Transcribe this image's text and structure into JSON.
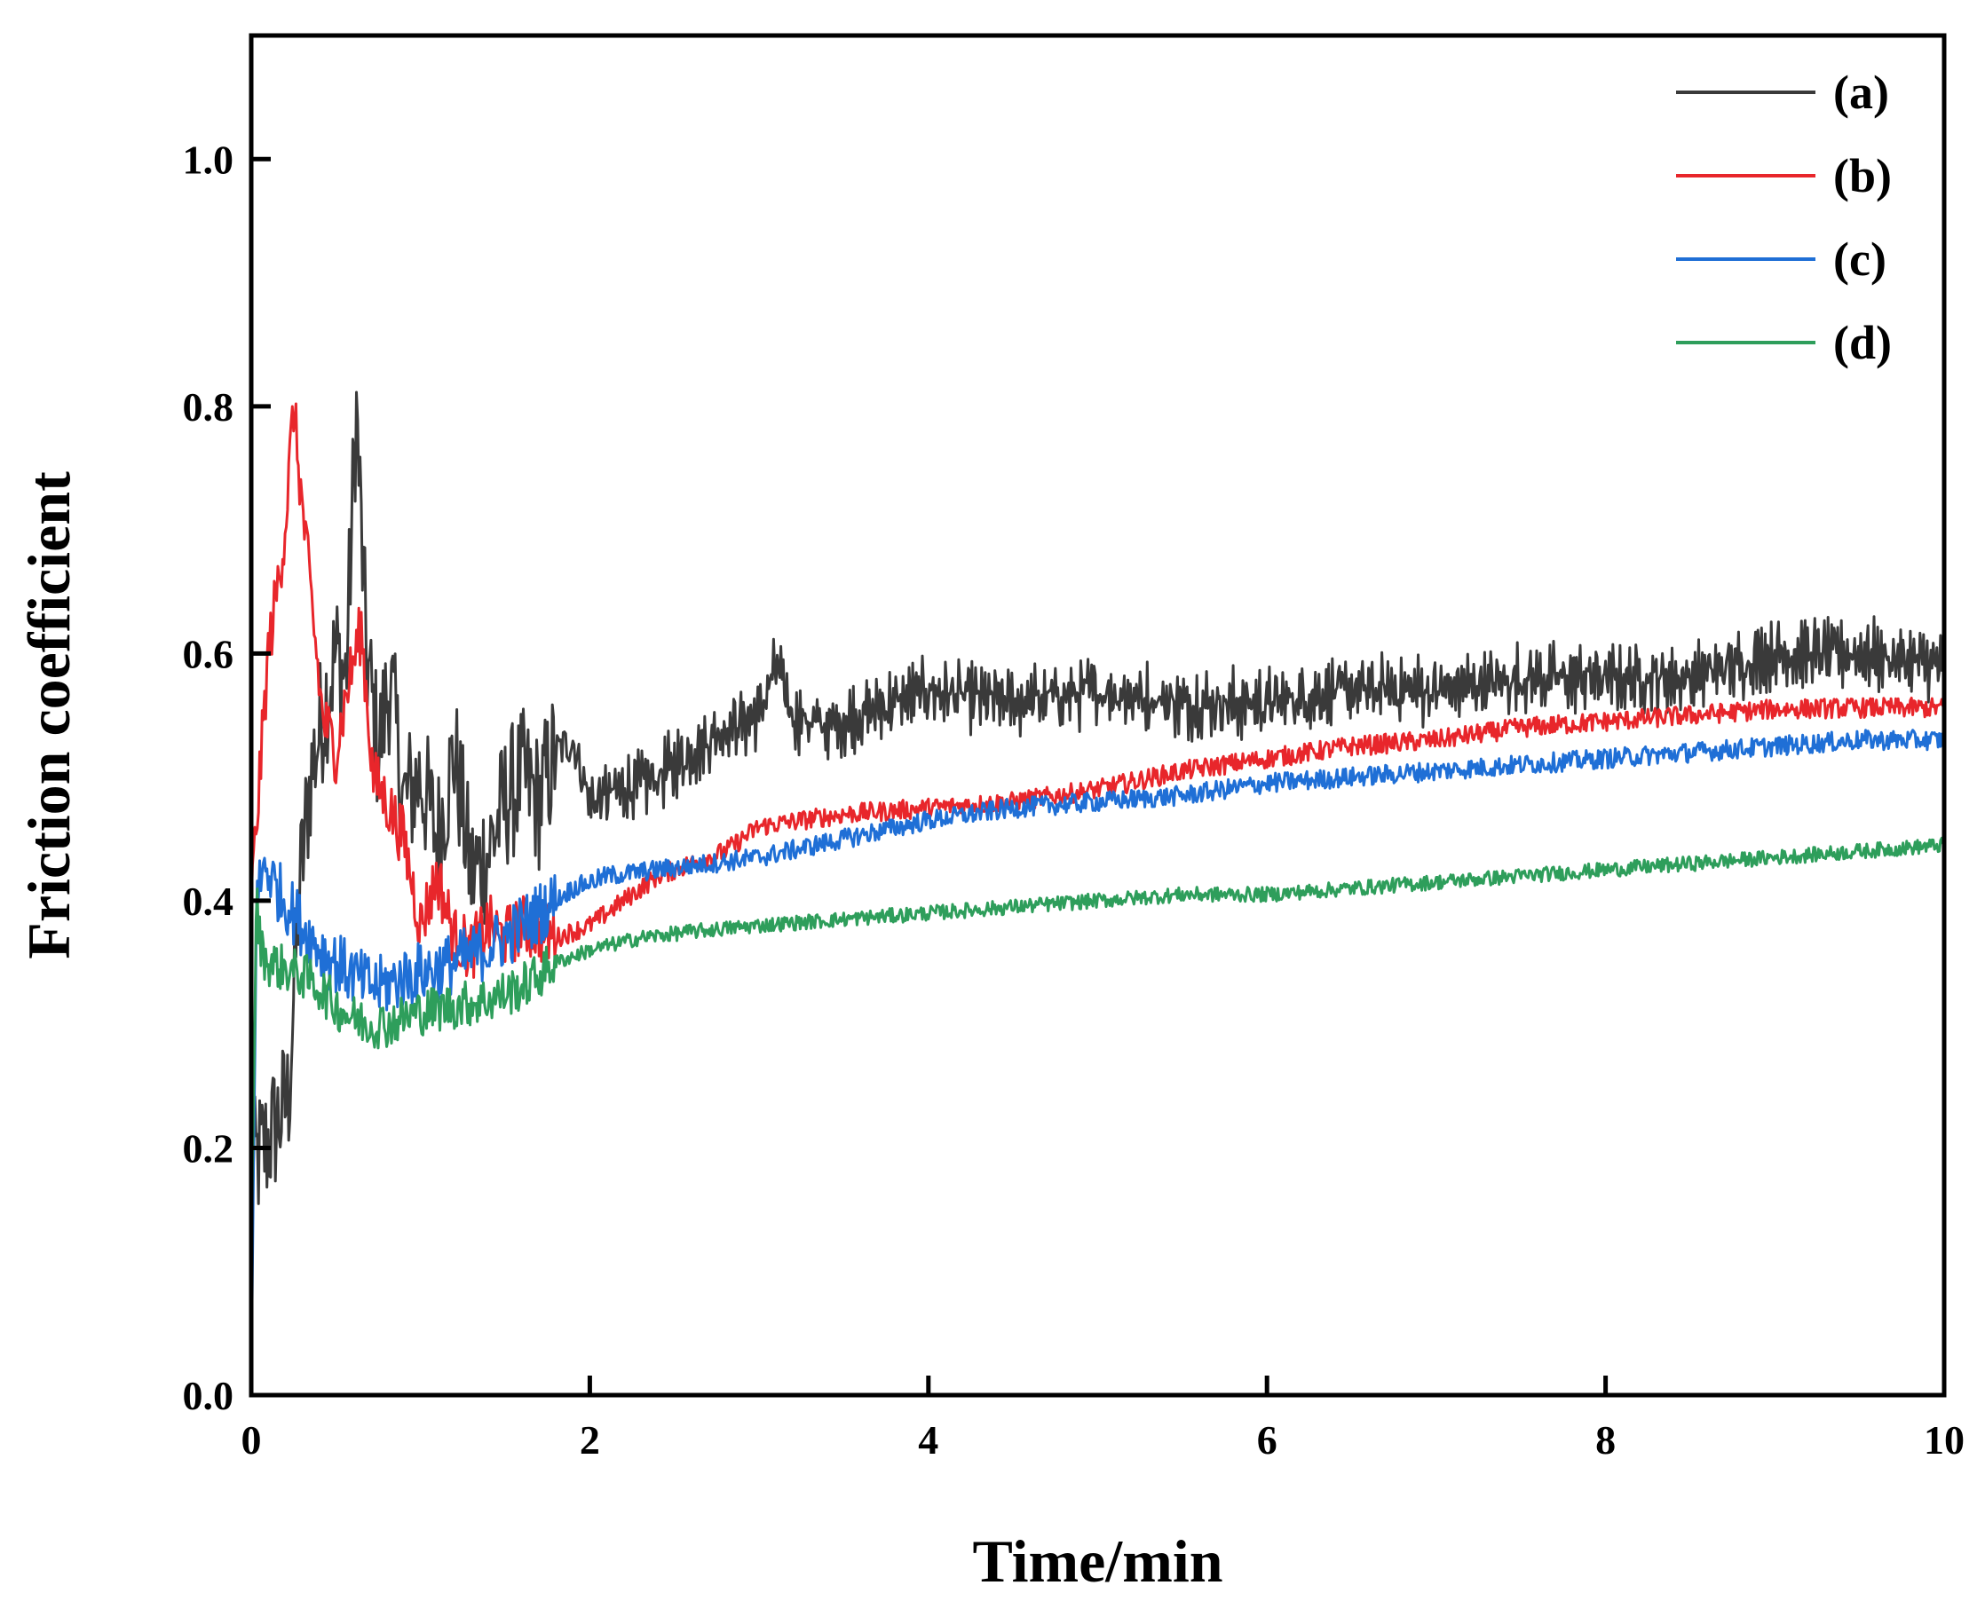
{
  "chart_data": {
    "type": "line",
    "title": "",
    "xlabel": "Time/min",
    "ylabel": "Friction coefficient",
    "xlim": [
      0,
      10
    ],
    "ylim": [
      0,
      1.1
    ],
    "xticks": [
      0,
      2,
      4,
      6,
      8,
      10
    ],
    "xtick_labels": [
      "0",
      "2",
      "4",
      "6",
      "8",
      "10"
    ],
    "yticks": [
      0.0,
      0.2,
      0.4,
      0.6,
      0.8,
      1.0
    ],
    "ytick_labels": [
      "0.0",
      "0.2",
      "0.4",
      "0.6",
      "0.8",
      "1.0"
    ],
    "legend_position": "top-right",
    "series": [
      {
        "name": "(a)",
        "color": "#3a3a3a",
        "x": [
          0,
          0.03,
          0.08,
          0.15,
          0.22,
          0.28,
          0.35,
          0.42,
          0.5,
          0.56,
          0.62,
          0.68,
          0.75,
          0.82,
          0.9,
          1.0,
          1.1,
          1.2,
          1.3,
          1.4,
          1.5,
          1.6,
          1.7,
          1.8,
          1.9,
          2.0,
          2.2,
          2.4,
          2.6,
          2.8,
          3.0,
          3.1,
          3.2,
          3.4,
          3.6,
          3.8,
          4.0,
          4.5,
          5.0,
          5.5,
          6.0,
          6.5,
          7.0,
          7.5,
          8.0,
          8.5,
          9.0,
          9.5,
          10.0
        ],
        "y": [
          0.17,
          0.19,
          0.2,
          0.22,
          0.24,
          0.4,
          0.5,
          0.55,
          0.6,
          0.58,
          0.8,
          0.6,
          0.52,
          0.58,
          0.48,
          0.5,
          0.45,
          0.52,
          0.42,
          0.44,
          0.48,
          0.5,
          0.48,
          0.52,
          0.53,
          0.48,
          0.49,
          0.5,
          0.52,
          0.54,
          0.55,
          0.59,
          0.55,
          0.54,
          0.55,
          0.56,
          0.57,
          0.56,
          0.57,
          0.56,
          0.56,
          0.57,
          0.57,
          0.58,
          0.58,
          0.58,
          0.6,
          0.6,
          0.59
        ]
      },
      {
        "name": "(b)",
        "color": "#e8262b",
        "x": [
          0,
          0.05,
          0.1,
          0.15,
          0.2,
          0.25,
          0.3,
          0.35,
          0.42,
          0.5,
          0.58,
          0.65,
          0.72,
          0.8,
          0.9,
          1.0,
          1.1,
          1.2,
          1.3,
          1.4,
          1.5,
          1.6,
          1.8,
          2.0,
          2.2,
          2.4,
          2.6,
          2.8,
          3.0,
          3.5,
          4.0,
          4.5,
          5.0,
          5.5,
          6.0,
          6.5,
          7.0,
          7.5,
          8.0,
          8.5,
          9.0,
          9.5,
          10.0
        ],
        "y": [
          0.4,
          0.5,
          0.6,
          0.65,
          0.7,
          0.8,
          0.72,
          0.65,
          0.55,
          0.52,
          0.58,
          0.62,
          0.5,
          0.48,
          0.45,
          0.38,
          0.42,
          0.37,
          0.36,
          0.38,
          0.37,
          0.38,
          0.37,
          0.38,
          0.4,
          0.42,
          0.43,
          0.44,
          0.46,
          0.47,
          0.475,
          0.48,
          0.49,
          0.505,
          0.515,
          0.525,
          0.53,
          0.54,
          0.545,
          0.55,
          0.555,
          0.556,
          0.556
        ]
      },
      {
        "name": "(c)",
        "color": "#1f6fd6",
        "x": [
          0,
          0.03,
          0.08,
          0.15,
          0.25,
          0.35,
          0.45,
          0.55,
          0.65,
          0.75,
          0.85,
          0.95,
          1.1,
          1.3,
          1.5,
          1.7,
          1.9,
          2.1,
          2.4,
          2.7,
          3.0,
          3.5,
          4.0,
          4.5,
          5.0,
          5.5,
          6.0,
          6.5,
          7.0,
          7.5,
          8.0,
          8.5,
          9.0,
          9.5,
          10.0
        ],
        "y": [
          0.0,
          0.4,
          0.43,
          0.41,
          0.39,
          0.37,
          0.355,
          0.345,
          0.335,
          0.33,
          0.335,
          0.34,
          0.345,
          0.355,
          0.37,
          0.39,
          0.41,
          0.42,
          0.425,
          0.43,
          0.435,
          0.45,
          0.465,
          0.475,
          0.48,
          0.485,
          0.495,
          0.5,
          0.505,
          0.51,
          0.515,
          0.52,
          0.525,
          0.53,
          0.53
        ]
      },
      {
        "name": "(d)",
        "color": "#2e9e5b",
        "x": [
          0,
          0.03,
          0.06,
          0.1,
          0.2,
          0.3,
          0.4,
          0.5,
          0.6,
          0.7,
          0.8,
          0.9,
          1.0,
          1.2,
          1.4,
          1.6,
          1.8,
          2.0,
          2.3,
          2.6,
          3.0,
          3.5,
          4.0,
          4.5,
          5.0,
          5.5,
          6.0,
          6.5,
          7.0,
          7.5,
          8.0,
          8.5,
          9.0,
          9.5,
          10.0
        ],
        "y": [
          0.1,
          0.4,
          0.36,
          0.35,
          0.345,
          0.34,
          0.33,
          0.315,
          0.305,
          0.3,
          0.3,
          0.305,
          0.31,
          0.315,
          0.32,
          0.33,
          0.35,
          0.36,
          0.37,
          0.375,
          0.38,
          0.385,
          0.39,
          0.395,
          0.4,
          0.405,
          0.405,
          0.41,
          0.415,
          0.42,
          0.425,
          0.43,
          0.435,
          0.44,
          0.445
        ]
      }
    ]
  }
}
